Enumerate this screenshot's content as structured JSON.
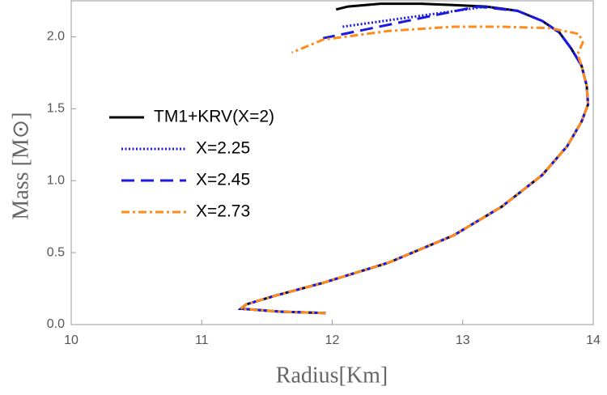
{
  "chart_data": {
    "type": "line",
    "x_label": "Radius[Km]",
    "y_label": "Mass [M⊙]",
    "xlim": [
      10,
      14
    ],
    "ylim": [
      0,
      2.25
    ],
    "xticks": [
      10,
      11,
      12,
      13,
      14
    ],
    "yticks": [
      {
        "value": 0,
        "label": "0.0"
      },
      {
        "value": 0.5,
        "label": "0.5"
      },
      {
        "value": 1,
        "label": "1.0"
      },
      {
        "value": 1.5,
        "label": "1.5"
      },
      {
        "value": 2,
        "label": "2.0"
      }
    ],
    "legend": "upper left",
    "series": [
      {
        "name": "TM1+KRV(X=2)",
        "color": "#000000",
        "linestyle": "solid",
        "x": [
          11.95,
          11.6,
          11.3,
          11.34,
          11.56,
          11.93,
          12.43,
          12.93,
          13.3,
          13.61,
          13.8,
          13.91,
          13.96,
          13.95,
          13.91,
          13.83,
          13.74,
          13.61,
          13.42,
          13.18,
          12.93,
          12.68,
          12.37,
          12.12,
          12.03
        ],
        "values": [
          0.08,
          0.09,
          0.11,
          0.14,
          0.2,
          0.29,
          0.43,
          0.62,
          0.82,
          1.04,
          1.24,
          1.41,
          1.53,
          1.66,
          1.8,
          1.92,
          2.03,
          2.11,
          2.18,
          2.21,
          2.22,
          2.23,
          2.23,
          2.21,
          2.19
        ]
      },
      {
        "name": "X=2.25",
        "color": "#1a1ae0",
        "linestyle": "dotted",
        "x": [
          11.95,
          11.6,
          11.3,
          11.34,
          11.56,
          11.93,
          12.43,
          12.93,
          13.3,
          13.61,
          13.8,
          13.91,
          13.96,
          13.95,
          13.91,
          13.83,
          13.74,
          13.61,
          13.42,
          13.18,
          12.08
        ],
        "values": [
          0.08,
          0.09,
          0.11,
          0.14,
          0.2,
          0.29,
          0.43,
          0.62,
          0.82,
          1.04,
          1.24,
          1.41,
          1.53,
          1.66,
          1.8,
          1.92,
          2.03,
          2.11,
          2.18,
          2.21,
          2.07
        ]
      },
      {
        "name": "X=2.45",
        "color": "#1a1ae0",
        "linestyle": "dashed",
        "x": [
          11.95,
          11.6,
          11.3,
          11.34,
          11.56,
          11.93,
          12.43,
          12.93,
          13.3,
          13.61,
          13.8,
          13.91,
          13.96,
          13.95,
          13.91,
          13.83,
          13.74,
          13.61,
          13.42,
          13.11,
          11.93
        ],
        "values": [
          0.08,
          0.09,
          0.11,
          0.14,
          0.2,
          0.29,
          0.43,
          0.62,
          0.82,
          1.04,
          1.24,
          1.41,
          1.53,
          1.66,
          1.8,
          1.92,
          2.03,
          2.11,
          2.18,
          2.21,
          1.99
        ]
      },
      {
        "name": "X=2.73",
        "color": "#ff8c1a",
        "linestyle": "dashdot",
        "x": [
          11.95,
          11.6,
          11.3,
          11.34,
          11.56,
          11.93,
          12.43,
          12.93,
          13.3,
          13.61,
          13.8,
          13.91,
          13.96,
          13.95,
          13.91,
          13.88,
          13.92,
          13.89,
          13.67,
          13.3,
          12.93,
          12.43,
          11.93,
          11.69
        ],
        "values": [
          0.08,
          0.09,
          0.11,
          0.14,
          0.2,
          0.29,
          0.43,
          0.62,
          0.82,
          1.04,
          1.24,
          1.41,
          1.53,
          1.66,
          1.8,
          1.88,
          1.96,
          2.02,
          2.06,
          2.07,
          2.07,
          2.04,
          1.98,
          1.89
        ]
      }
    ]
  }
}
